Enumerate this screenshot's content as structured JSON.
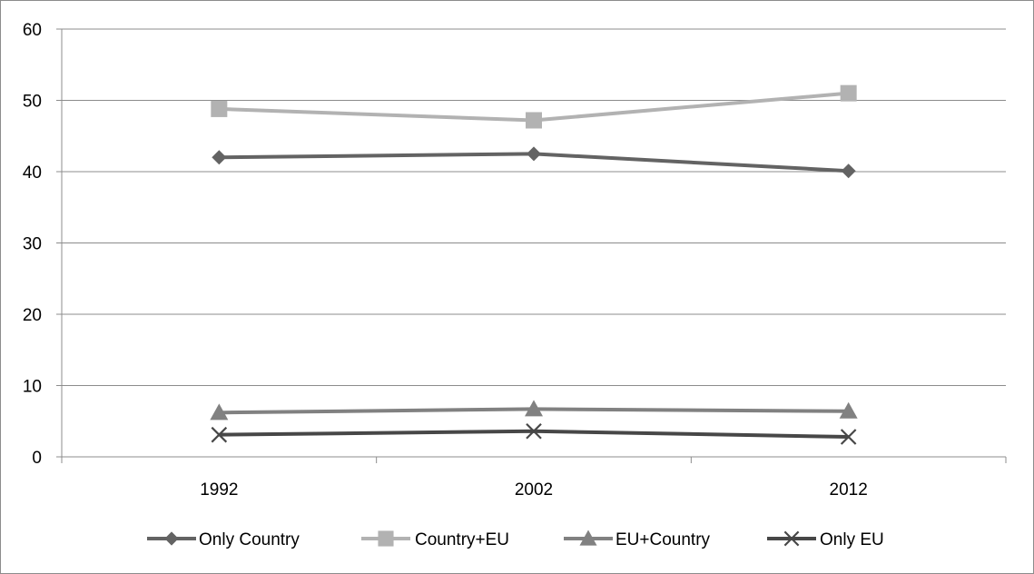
{
  "chart_data": {
    "type": "line",
    "title": "",
    "xlabel": "",
    "ylabel": "",
    "categories": [
      "1992",
      "2002",
      "2012"
    ],
    "ylim": [
      0,
      60
    ],
    "yticks": [
      "0",
      "10",
      "20",
      "30",
      "40",
      "50",
      "60"
    ],
    "grid": "horizontal",
    "legend_position": "bottom",
    "series": [
      {
        "name": "Only Country",
        "values": [
          42.0,
          42.5,
          40.1
        ],
        "marker": "diamond",
        "color": "#636363"
      },
      {
        "name": "Country+EU",
        "values": [
          48.8,
          47.2,
          51.0
        ],
        "marker": "square",
        "color": "#b2b2b2"
      },
      {
        "name": "EU+Country",
        "values": [
          6.2,
          6.7,
          6.4
        ],
        "marker": "triangle",
        "color": "#818181"
      },
      {
        "name": "Only EU",
        "values": [
          3.1,
          3.6,
          2.8
        ],
        "marker": "x",
        "color": "#474747"
      }
    ]
  }
}
